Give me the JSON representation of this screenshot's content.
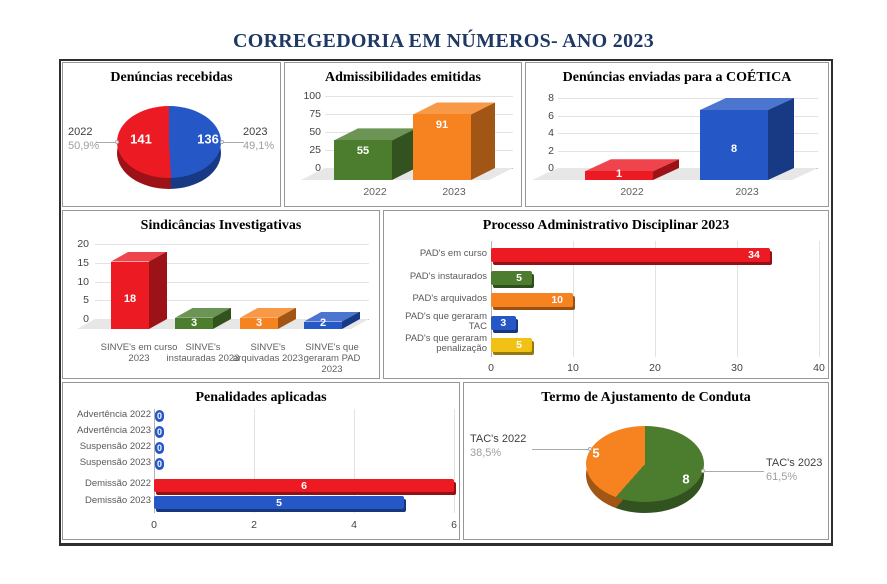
{
  "page_title": "CORREGEDORIA EM NÚMEROS- ANO 2023",
  "colors": {
    "red": "#EC1B23",
    "blue": "#2557C6",
    "green": "#4C7D2F",
    "orange": "#F68220",
    "yellow": "#F1C116",
    "title_navy": "#1F3864",
    "gridline": "#E3E3E3",
    "axis": "#B3B3B3",
    "floor": "#E7E7E7"
  },
  "chart_data": [
    {
      "type": "pie",
      "style": "3d",
      "title": "Denúncias recebidas",
      "labels": [
        "2022",
        "2023"
      ],
      "values": [
        141,
        136
      ],
      "pct_labels": [
        "50,9%",
        "49,1%"
      ],
      "slice_colors": [
        "red",
        "blue"
      ],
      "legend_position": "outside-leader-lines"
    },
    {
      "type": "bar",
      "style": "3d-column",
      "title": "Admissibilidades emitidas",
      "categories": [
        "2022",
        "2023"
      ],
      "values": [
        55,
        91
      ],
      "bar_colors": [
        "green",
        "orange"
      ],
      "ylim": [
        0,
        100
      ],
      "yticks": [
        0,
        25,
        50,
        75,
        100
      ],
      "grid": true
    },
    {
      "type": "bar",
      "style": "3d-column",
      "title": "Denúncias enviadas para a COÉTICA",
      "categories": [
        "2022",
        "2023"
      ],
      "values": [
        1,
        8
      ],
      "bar_colors": [
        "red",
        "blue"
      ],
      "ylim": [
        0,
        8
      ],
      "yticks": [
        0,
        2,
        4,
        6,
        8
      ],
      "grid": true
    },
    {
      "type": "bar",
      "style": "3d-column",
      "title": "Sindicâncias Investigativas",
      "categories": [
        "SINVE's em curso 2023",
        "SINVE's instauradas 2023",
        "SINVE's arquivadas 2023",
        "SINVE's que geraram PAD 2023"
      ],
      "values": [
        18,
        3,
        3,
        2
      ],
      "bar_colors": [
        "red",
        "green",
        "orange",
        "blue"
      ],
      "ylim": [
        0,
        20
      ],
      "yticks": [
        0,
        5,
        10,
        15,
        20
      ],
      "grid": true
    },
    {
      "type": "bar",
      "style": "3d-horizontal",
      "orientation": "horizontal",
      "title": "Processo Administrativo Disciplinar 2023",
      "categories": [
        "PAD's em curso",
        "PAD's instaurados",
        "PAD's arquivados",
        "PAD's que geraram TAC",
        "PAD's que geraram penalização"
      ],
      "values": [
        34,
        5,
        10,
        3,
        5
      ],
      "bar_colors": [
        "red",
        "green",
        "orange",
        "blue",
        "yellow"
      ],
      "xlim": [
        0,
        40
      ],
      "xticks": [
        0,
        10,
        20,
        30,
        40
      ],
      "grid": true
    },
    {
      "type": "bar",
      "style": "3d-horizontal",
      "orientation": "horizontal",
      "title": "Penalidades aplicadas",
      "categories": [
        "Advertência 2022",
        "Advertência 2023",
        "Suspensão 2022",
        "Suspensão 2023",
        "Demissão 2022",
        "Demissão 2023"
      ],
      "values": [
        0,
        0,
        0,
        0,
        6,
        5
      ],
      "bar_colors": [
        "blue",
        "blue",
        "blue",
        "blue",
        "red",
        "blue"
      ],
      "xlim": [
        0,
        6
      ],
      "xticks": [
        0,
        2,
        4,
        6
      ],
      "grid": true
    },
    {
      "type": "pie",
      "style": "3d",
      "title": "Termo de Ajustamento de Conduta",
      "labels": [
        "TAC's 2022",
        "TAC's 2023"
      ],
      "values": [
        5,
        8
      ],
      "pct_labels": [
        "38,5%",
        "61,5%"
      ],
      "slice_colors": [
        "orange",
        "green"
      ],
      "legend_position": "outside-leader-lines"
    }
  ]
}
